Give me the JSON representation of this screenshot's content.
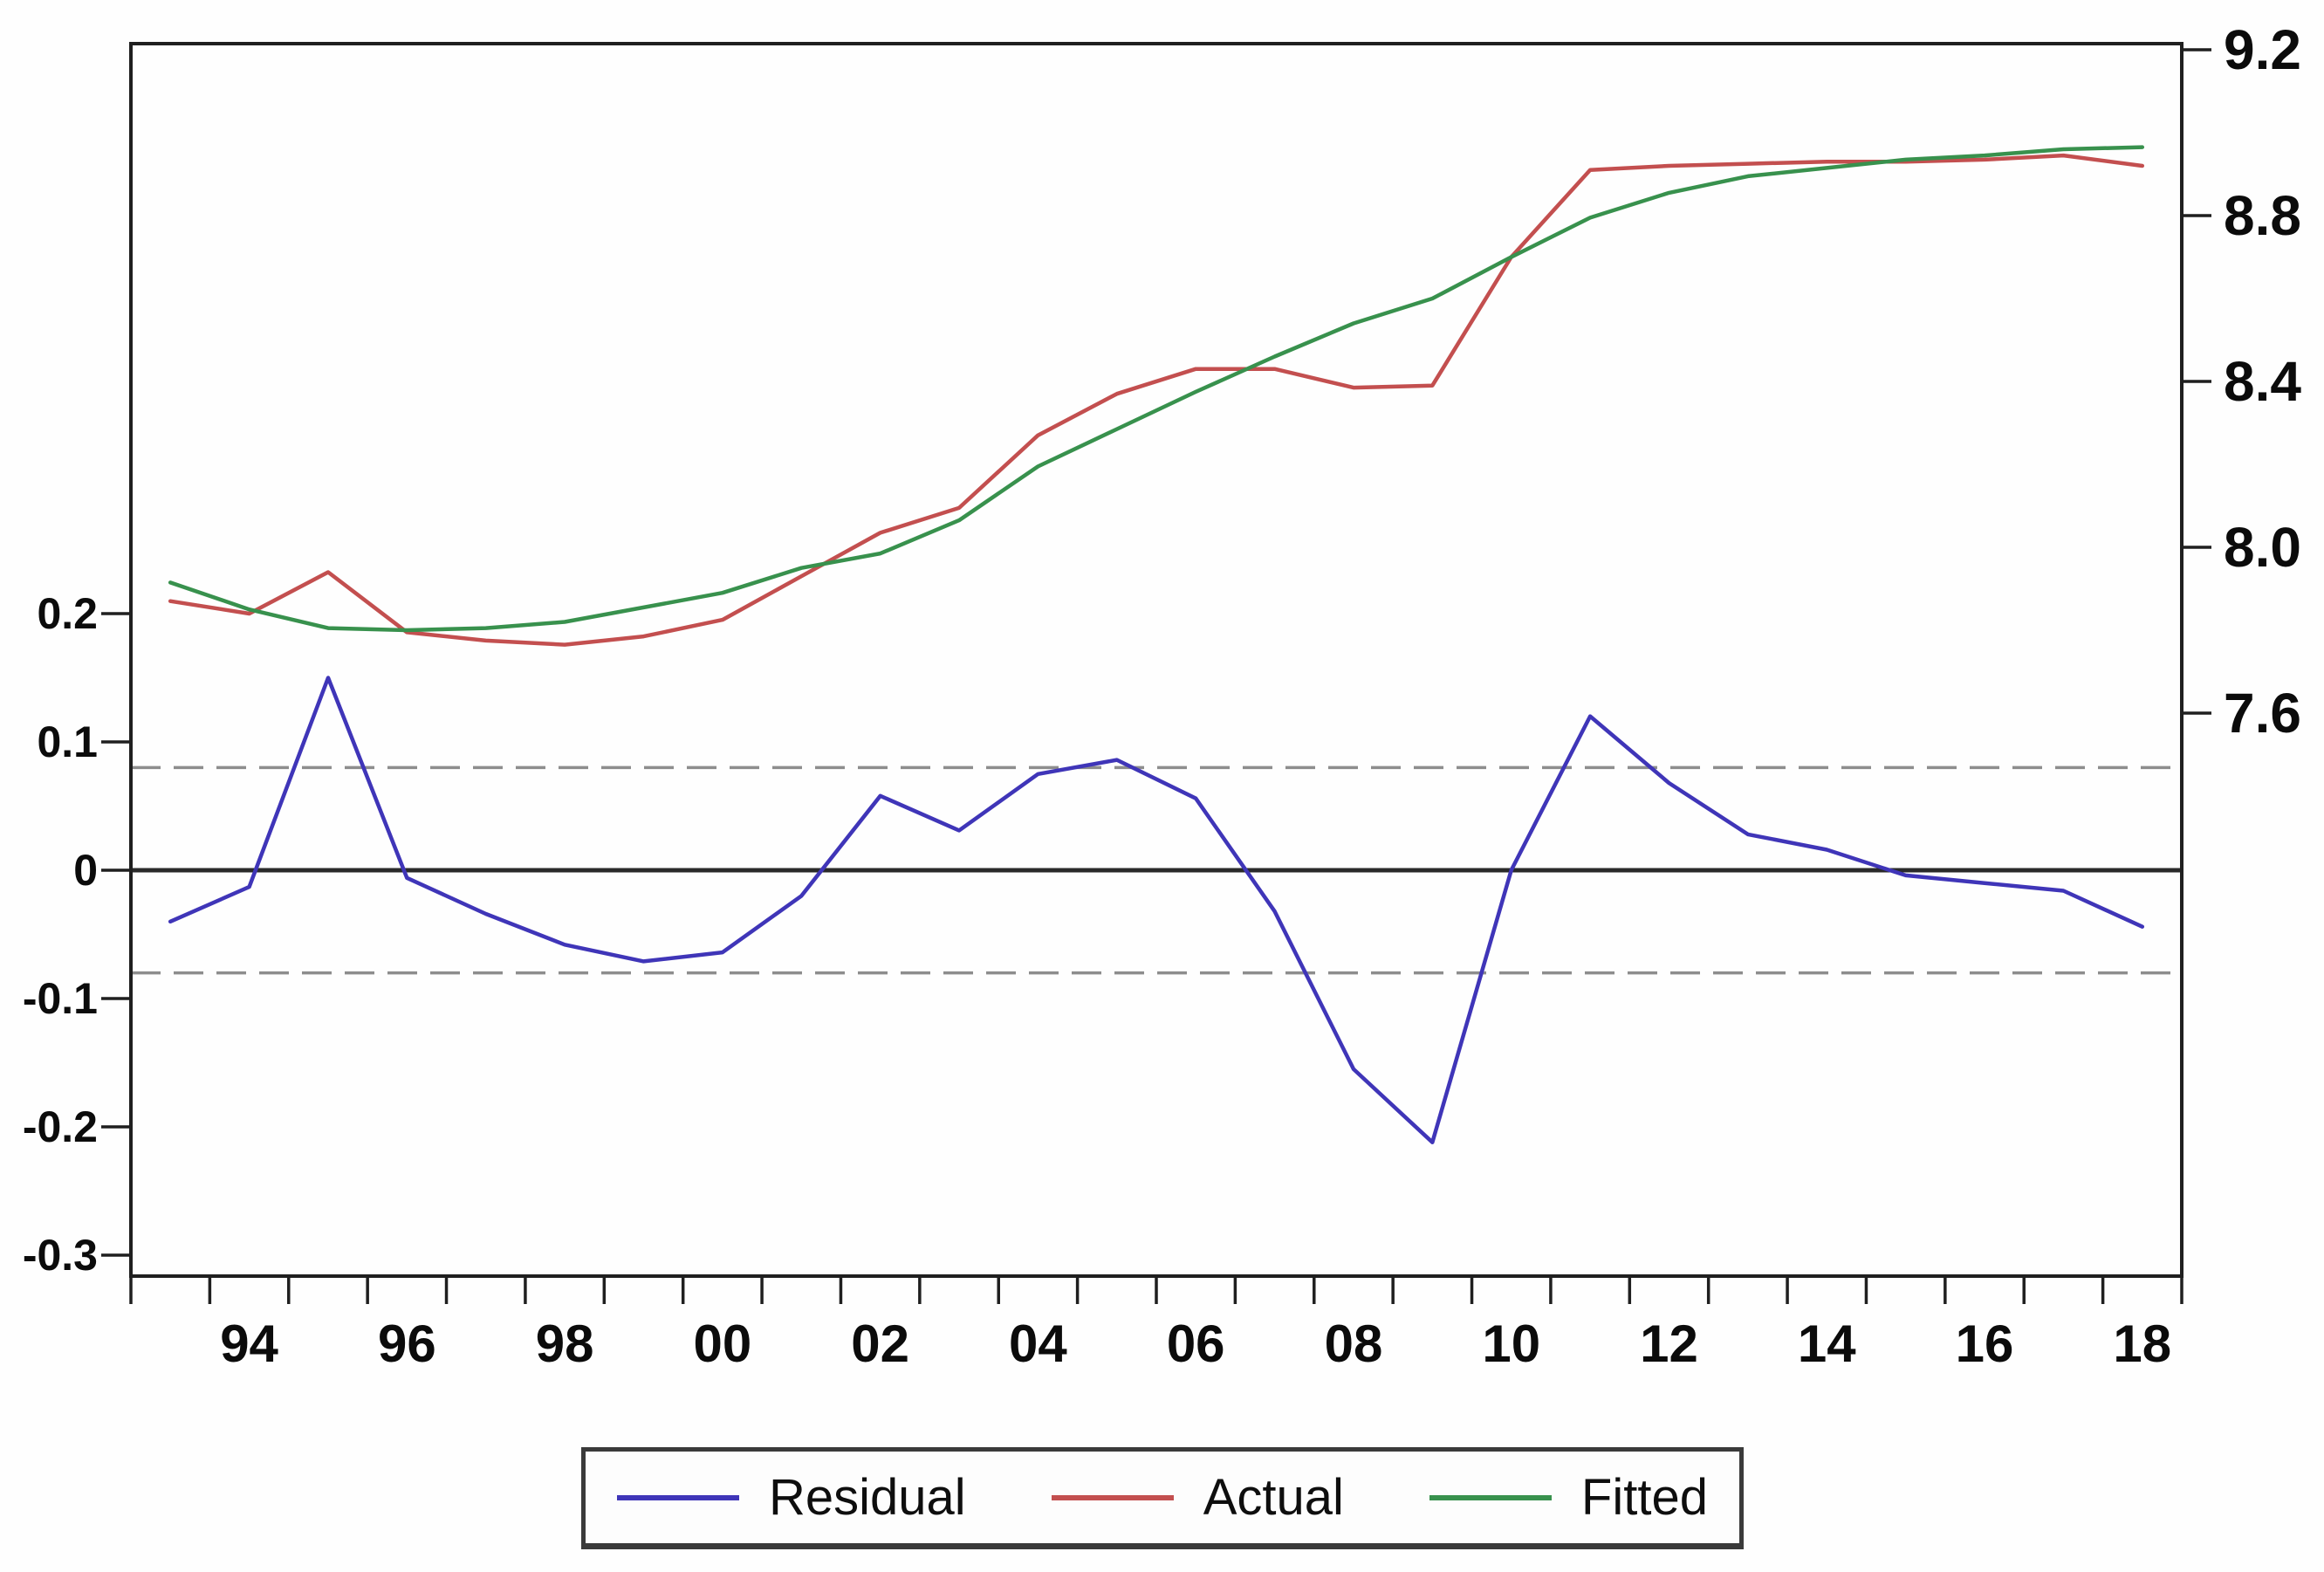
{
  "chart_data": {
    "type": "line",
    "title": "",
    "xlabel": "",
    "ylabel_left": "",
    "ylabel_right": "",
    "grid": false,
    "x": [
      1993,
      1994,
      1995,
      1996,
      1997,
      1998,
      1999,
      2000,
      2001,
      2002,
      2003,
      2004,
      2005,
      2006,
      2007,
      2008,
      2009,
      2010,
      2011,
      2012,
      2013,
      2014,
      2015,
      2016,
      2017,
      2018
    ],
    "series": [
      {
        "name": "Residual",
        "axis": "left",
        "color": "#3f35b8",
        "values": [
          -0.04,
          -0.013,
          0.15,
          -0.006,
          -0.034,
          -0.058,
          -0.071,
          -0.064,
          -0.02,
          0.058,
          0.031,
          0.075,
          0.086,
          0.056,
          -0.032,
          -0.155,
          -0.212,
          0.0,
          0.12,
          0.068,
          0.028,
          0.016,
          -0.004,
          -0.01,
          -0.016,
          -0.044
        ]
      },
      {
        "name": "Actual",
        "axis": "right",
        "color": "#c34f4f",
        "values": [
          7.87,
          7.84,
          7.94,
          7.795,
          7.775,
          7.765,
          7.785,
          7.825,
          7.93,
          8.035,
          8.095,
          8.27,
          8.37,
          8.43,
          8.43,
          8.385,
          8.39,
          8.7,
          8.91,
          8.92,
          8.925,
          8.93,
          8.93,
          8.935,
          8.945,
          8.92
        ]
      },
      {
        "name": "Fitted",
        "axis": "right",
        "color": "#38914d",
        "values": [
          7.915,
          7.85,
          7.805,
          7.8,
          7.805,
          7.82,
          7.855,
          7.89,
          7.95,
          7.985,
          8.065,
          8.195,
          8.285,
          8.375,
          8.46,
          8.54,
          8.6,
          8.7,
          8.795,
          8.855,
          8.895,
          8.915,
          8.935,
          8.945,
          8.96,
          8.965
        ]
      }
    ],
    "left_axis": {
      "tick_labels": [
        "0.2",
        "0.1",
        "0",
        "-0.1",
        "-0.2",
        "-0.3"
      ],
      "tick_values": [
        0.2,
        0.1,
        0.0,
        -0.1,
        -0.2,
        -0.3
      ],
      "range": [
        -0.3163,
        0.6442
      ],
      "zero_line": 0.0,
      "band_upper": 0.08,
      "band_lower": -0.08
    },
    "right_axis": {
      "tick_labels": [
        "9.2",
        "8.8",
        "8.4",
        "8.0",
        "7.6"
      ],
      "tick_values": [
        9.2,
        8.8,
        8.4,
        8.0,
        7.6
      ],
      "range": [
        6.2421,
        9.2147
      ]
    },
    "x_axis": {
      "range": [
        1993,
        2019
      ],
      "tick_step": 1,
      "point_offset": 0.5,
      "label_years": [
        1994,
        1996,
        1998,
        2000,
        2002,
        2004,
        2006,
        2008,
        2010,
        2012,
        2014,
        2016,
        2018
      ],
      "tick_labels": [
        "94",
        "96",
        "98",
        "00",
        "02",
        "04",
        "06",
        "08",
        "10",
        "12",
        "14",
        "16",
        "18"
      ]
    },
    "legend_position": "bottom"
  },
  "legend": {
    "residual": "Residual",
    "actual": "Actual",
    "fitted": "Fitted"
  },
  "colors": {
    "residual_line": "#3f35b8",
    "actual_line": "#c34f4f",
    "fitted_line": "#38914d",
    "band_dashed": "#8d8d8d",
    "zero_line": "#2a2a2a",
    "axis": "#1f1f1f",
    "background": "#fefefe"
  }
}
